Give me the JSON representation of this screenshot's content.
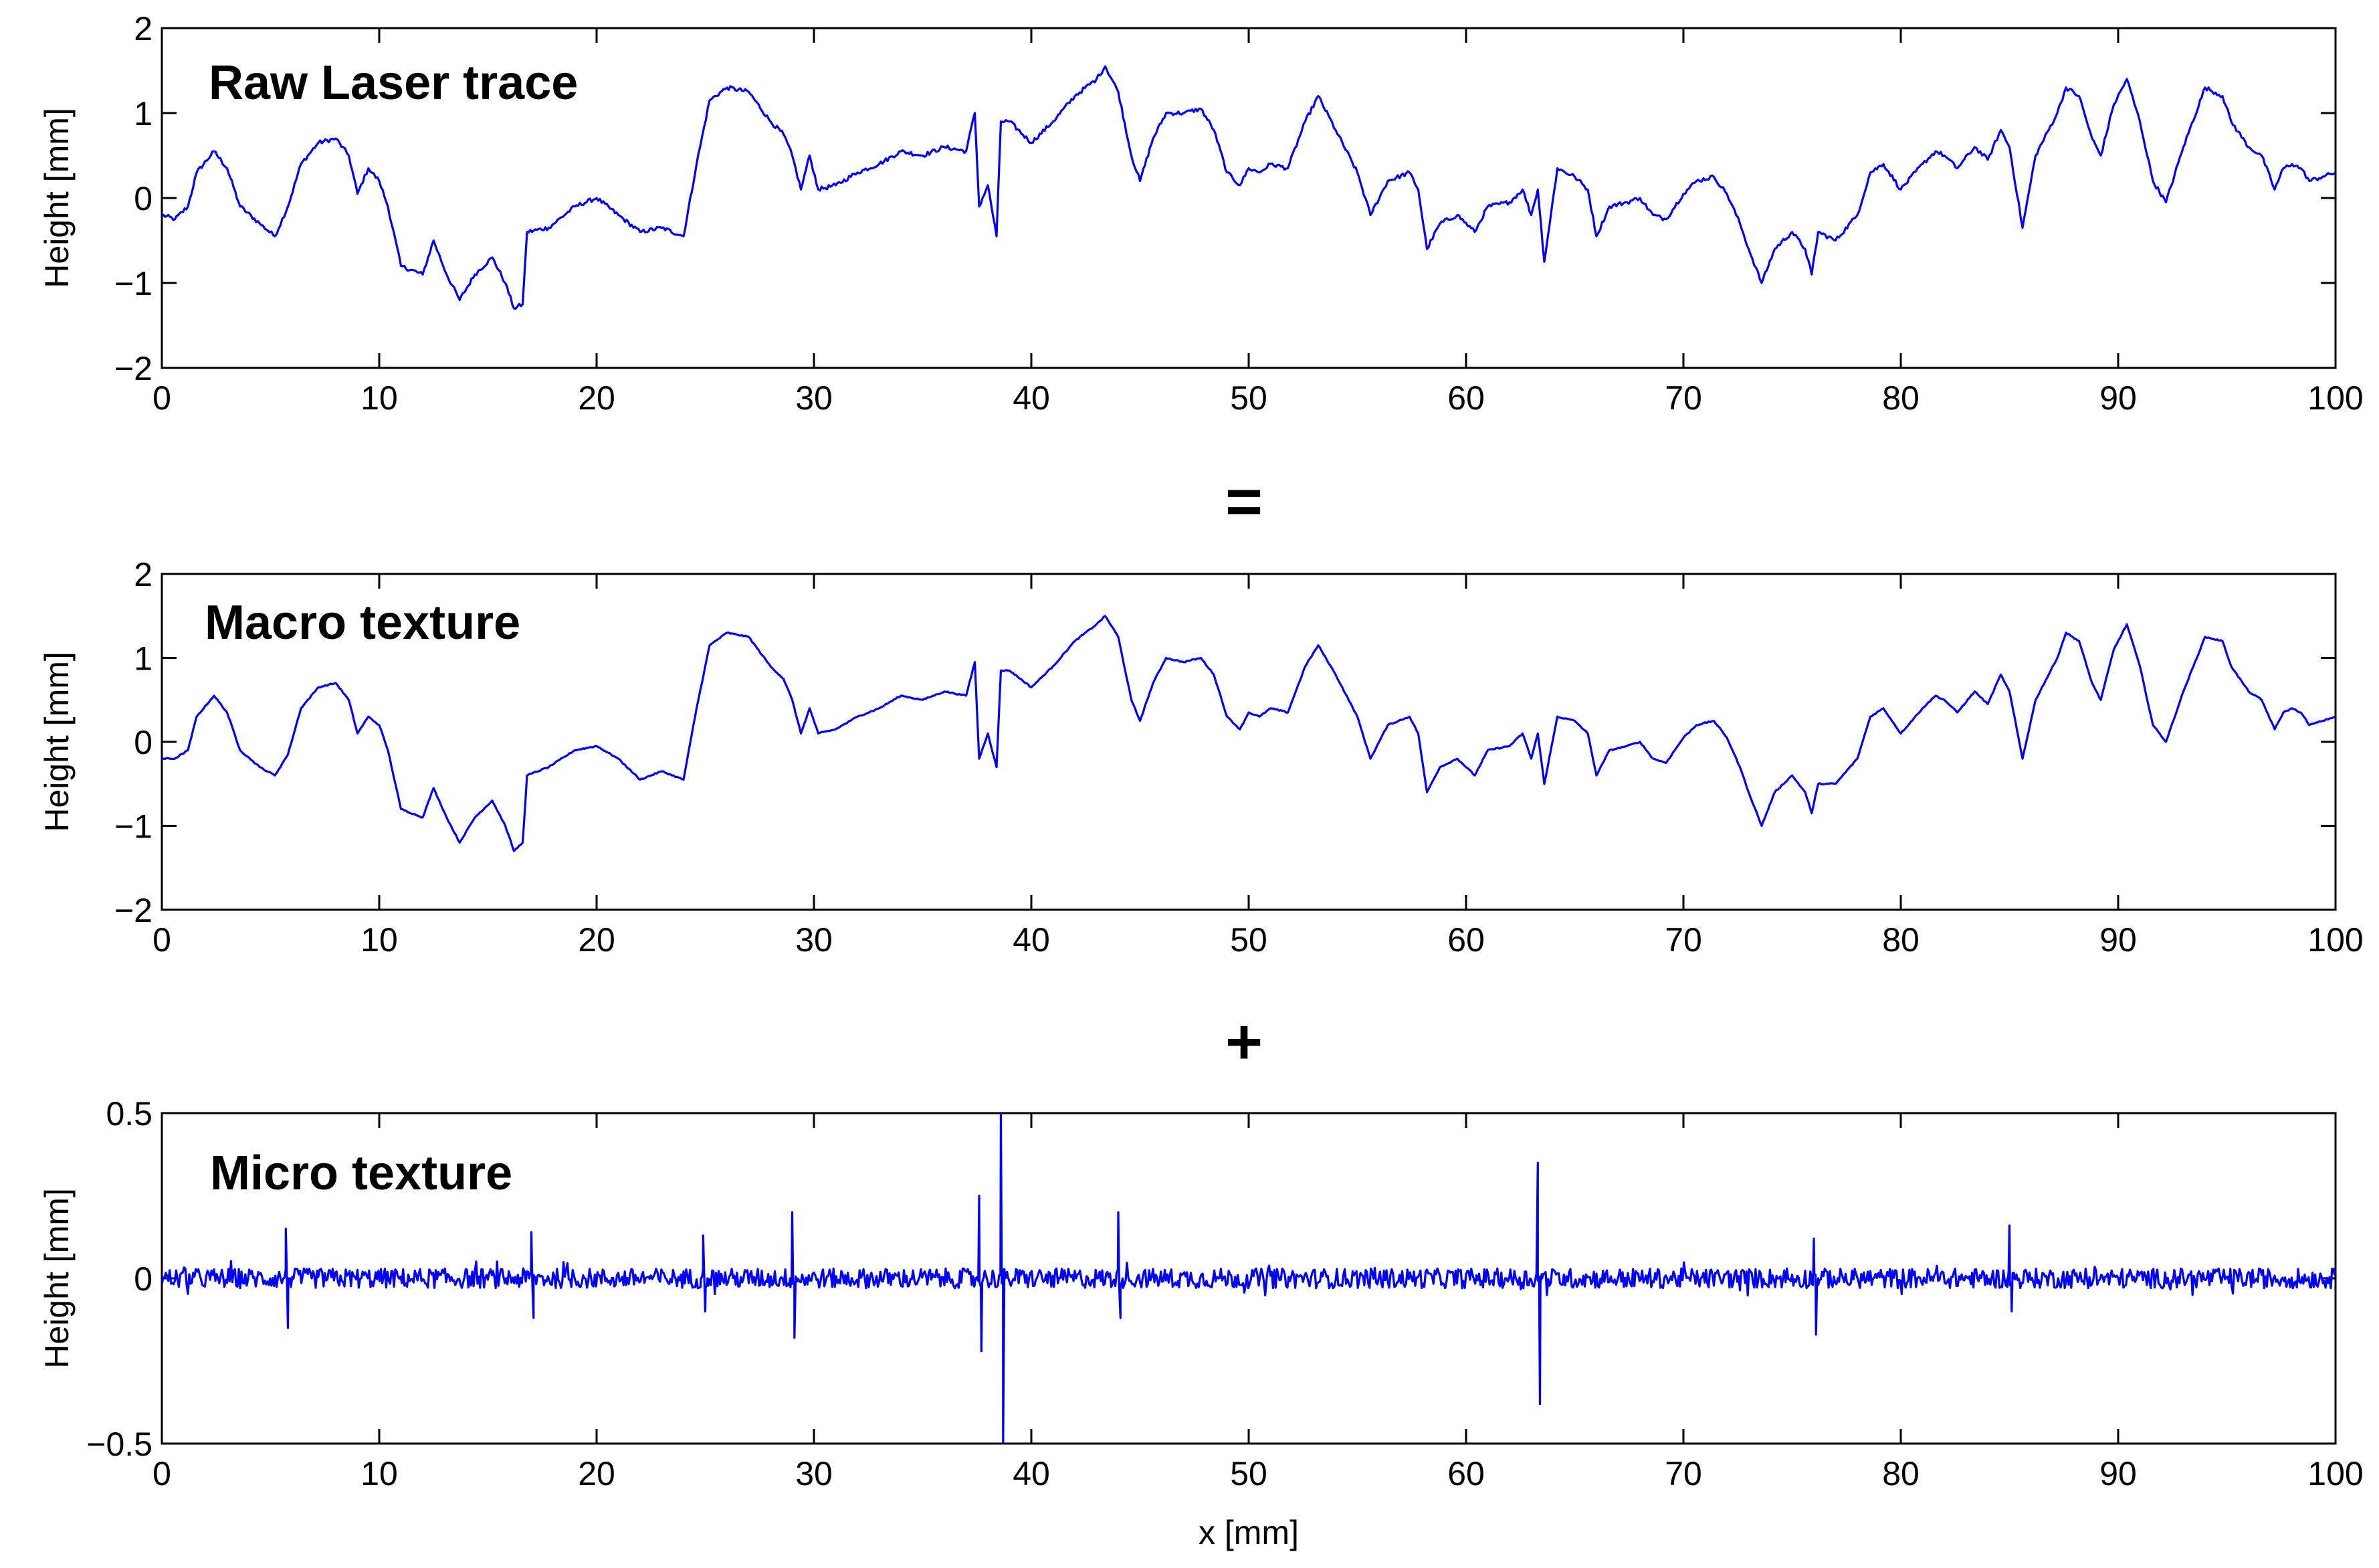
{
  "figure": {
    "operators": [
      "=",
      "+"
    ],
    "line_color": "#0000ff"
  },
  "chart_data": [
    {
      "type": "line",
      "title": "Raw Laser trace",
      "xlabel": "",
      "ylabel": "Height [mm]",
      "xlim": [
        0,
        100
      ],
      "ylim": [
        -2,
        2
      ],
      "xticks": [
        0,
        10,
        20,
        30,
        40,
        50,
        60,
        70,
        80,
        90,
        100
      ],
      "yticks": [
        -2,
        -1,
        0,
        1,
        2
      ],
      "ytick_labels": [
        "−2",
        "−1",
        "0",
        "1",
        "2"
      ],
      "grid": false,
      "series": [
        {
          "x": [
            0,
            0.6,
            1.2,
            1.6,
            2.4,
            3,
            3.6,
            4.5,
            5.2,
            5.8,
            6.4,
            7.2,
            8,
            8.6,
            9,
            9.5,
            10,
            10.4,
            11,
            12,
            12.5,
            13.1,
            13.7,
            14.4,
            15.2,
            15.8,
            16.2,
            16.6,
            16.8,
            17.8,
            19,
            20,
            21,
            22,
            23,
            24,
            24.6,
            25.2,
            26,
            27,
            28,
            28.6,
            29,
            29.4,
            29.8,
            30.2,
            31,
            32,
            33,
            34,
            35,
            36,
            37,
            37.4,
            37.6,
            38,
            38.4,
            38.6,
            39,
            40,
            41,
            42,
            43,
            43.4,
            44,
            44.6,
            45,
            45.6,
            46.2,
            47,
            47.8,
            48.4,
            49,
            49.6,
            50,
            50.5,
            51,
            51.8,
            52.6,
            53.2,
            54,
            55,
            55.6,
            56.4,
            57.4,
            57.8,
            58.2,
            58.8,
            59.6,
            60.4,
            61,
            62,
            62.6,
            63,
            63.3,
            63.6,
            64.2,
            65,
            65.6,
            66,
            66.6,
            67.4,
            68,
            68.6,
            69.2,
            70,
            70.6,
            71.4,
            72,
            72.6,
            73,
            73.6,
            74.2,
            75,
            75.6,
            75.9,
            76.2,
            77,
            78,
            78.6,
            79.2,
            80,
            81,
            81.6,
            82,
            82.6,
            83.4,
            84,
            84.6,
            85,
            85.6,
            86.2,
            87.2,
            87.6,
            88.2,
            88.8,
            89.2,
            89.8,
            90.4,
            91,
            91.6,
            92.2,
            93,
            94,
            94.8,
            95.2,
            96,
            96.6,
            97.2,
            97.6,
            98,
            98.4,
            98.8,
            99.4,
            100
          ],
          "y": [
            -0.2,
            -0.25,
            -0.1,
            0.3,
            0.55,
            0.35,
            -0.1,
            -0.3,
            -0.45,
            -0.1,
            0.4,
            0.65,
            0.7,
            0.5,
            0.05,
            0.35,
            0.2,
            -0.1,
            -0.8,
            -0.9,
            -0.5,
            -0.9,
            -1.2,
            -0.9,
            -0.7,
            -1.0,
            -1.3,
            -1.25,
            -0.4,
            -0.35,
            -0.1,
            0.0,
            -0.2,
            -0.4,
            -0.35,
            -0.45,
            0.4,
            1.15,
            1.3,
            1.25,
            0.9,
            0.75,
            0.5,
            0.1,
            0.5,
            0.1,
            0.15,
            0.3,
            0.4,
            0.55,
            0.5,
            0.6,
            0.55,
            1.0,
            -0.1,
            0.15,
            -0.45,
            0.9,
            0.9,
            0.65,
            0.9,
            1.2,
            1.4,
            1.55,
            1.25,
            0.5,
            0.2,
            0.7,
            1.0,
            1.0,
            1.05,
            0.8,
            0.3,
            0.15,
            0.35,
            0.3,
            0.4,
            0.35,
            0.9,
            1.2,
            0.8,
            0.3,
            -0.2,
            0.2,
            0.3,
            0.1,
            -0.6,
            -0.3,
            -0.2,
            -0.4,
            -0.1,
            -0.05,
            0.1,
            -0.2,
            0.1,
            -0.75,
            0.35,
            0.25,
            0.1,
            -0.45,
            -0.1,
            -0.05,
            0.0,
            -0.2,
            -0.25,
            0.05,
            0.2,
            0.25,
            0.05,
            -0.3,
            -0.6,
            -1.0,
            -0.6,
            -0.4,
            -0.6,
            -0.9,
            -0.4,
            -0.5,
            -0.2,
            0.3,
            0.4,
            0.1,
            0.4,
            0.55,
            0.5,
            0.35,
            0.6,
            0.45,
            0.8,
            0.6,
            -0.35,
            0.5,
            1.0,
            1.3,
            1.2,
            0.7,
            0.5,
            1.1,
            1.4,
            0.9,
            0.2,
            -0.05,
            0.6,
            1.3,
            1.2,
            0.9,
            0.6,
            0.5,
            0.1,
            0.35,
            0.4,
            0.35,
            0.2,
            0.25,
            0.3
          ]
        }
      ]
    },
    {
      "type": "line",
      "title": "Macro texture",
      "xlabel": "",
      "ylabel": "Height [mm]",
      "xlim": [
        0,
        100
      ],
      "ylim": [
        -2,
        2
      ],
      "xticks": [
        0,
        10,
        20,
        30,
        40,
        50,
        60,
        70,
        80,
        90,
        100
      ],
      "yticks": [
        -2,
        -1,
        0,
        1,
        2
      ],
      "ytick_labels": [
        "−2",
        "−1",
        "0",
        "1",
        "2"
      ],
      "grid": false,
      "series": [
        {
          "x": [
            0,
            0.6,
            1.2,
            1.6,
            2.4,
            3,
            3.6,
            4.5,
            5.2,
            5.8,
            6.4,
            7.2,
            8,
            8.6,
            9,
            9.5,
            10,
            10.4,
            11,
            12,
            12.5,
            13.1,
            13.7,
            14.4,
            15.2,
            15.8,
            16.2,
            16.6,
            16.8,
            17.8,
            19,
            20,
            21,
            22,
            23,
            24,
            24.6,
            25.2,
            26,
            27,
            28,
            28.6,
            29,
            29.4,
            29.8,
            30.2,
            31,
            32,
            33,
            34,
            35,
            36,
            37,
            37.4,
            37.6,
            38,
            38.4,
            38.6,
            39,
            40,
            41,
            42,
            43,
            43.4,
            44,
            44.6,
            45,
            45.6,
            46.2,
            47,
            47.8,
            48.4,
            49,
            49.6,
            50,
            50.5,
            51,
            51.8,
            52.6,
            53.2,
            54,
            55,
            55.6,
            56.4,
            57.4,
            57.8,
            58.2,
            58.8,
            59.6,
            60.4,
            61,
            62,
            62.6,
            63,
            63.3,
            63.6,
            64.2,
            65,
            65.6,
            66,
            66.6,
            67.4,
            68,
            68.6,
            69.2,
            70,
            70.6,
            71.4,
            72,
            72.6,
            73,
            73.6,
            74.2,
            75,
            75.6,
            75.9,
            76.2,
            77,
            78,
            78.6,
            79.2,
            80,
            81,
            81.6,
            82,
            82.6,
            83.4,
            84,
            84.6,
            85,
            85.6,
            86.2,
            87.2,
            87.6,
            88.2,
            88.8,
            89.2,
            89.8,
            90.4,
            91,
            91.6,
            92.2,
            93,
            94,
            94.8,
            95.2,
            96,
            96.6,
            97.2,
            97.6,
            98,
            98.4,
            98.8,
            99.4,
            100
          ],
          "y": [
            -0.2,
            -0.2,
            -0.1,
            0.3,
            0.55,
            0.35,
            -0.1,
            -0.3,
            -0.4,
            -0.15,
            0.4,
            0.65,
            0.7,
            0.5,
            0.1,
            0.3,
            0.2,
            -0.1,
            -0.8,
            -0.9,
            -0.55,
            -0.9,
            -1.2,
            -0.9,
            -0.7,
            -1.0,
            -1.3,
            -1.2,
            -0.4,
            -0.3,
            -0.1,
            -0.05,
            -0.2,
            -0.45,
            -0.35,
            -0.45,
            0.4,
            1.15,
            1.3,
            1.25,
            0.9,
            0.75,
            0.5,
            0.1,
            0.4,
            0.1,
            0.15,
            0.3,
            0.4,
            0.55,
            0.5,
            0.6,
            0.55,
            0.95,
            -0.2,
            0.1,
            -0.3,
            0.85,
            0.85,
            0.65,
            0.9,
            1.2,
            1.4,
            1.5,
            1.25,
            0.5,
            0.25,
            0.7,
            1.0,
            0.95,
            1.0,
            0.8,
            0.3,
            0.15,
            0.35,
            0.3,
            0.4,
            0.35,
            0.9,
            1.15,
            0.8,
            0.3,
            -0.2,
            0.2,
            0.3,
            0.1,
            -0.6,
            -0.3,
            -0.2,
            -0.4,
            -0.1,
            -0.05,
            0.1,
            -0.2,
            0.1,
            -0.5,
            0.3,
            0.25,
            0.1,
            -0.4,
            -0.1,
            -0.05,
            0.0,
            -0.2,
            -0.25,
            0.05,
            0.2,
            0.25,
            0.05,
            -0.3,
            -0.6,
            -1.0,
            -0.6,
            -0.4,
            -0.6,
            -0.85,
            -0.5,
            -0.5,
            -0.2,
            0.3,
            0.4,
            0.1,
            0.4,
            0.55,
            0.5,
            0.35,
            0.6,
            0.45,
            0.8,
            0.6,
            -0.2,
            0.5,
            1.0,
            1.3,
            1.2,
            0.7,
            0.5,
            1.1,
            1.4,
            0.9,
            0.2,
            0.0,
            0.6,
            1.25,
            1.2,
            0.9,
            0.6,
            0.5,
            0.15,
            0.35,
            0.4,
            0.35,
            0.2,
            0.25,
            0.3
          ]
        }
      ]
    },
    {
      "type": "line",
      "title": "Micro texture",
      "xlabel": "x [mm]",
      "ylabel": "Height [mm]",
      "xlim": [
        0,
        100
      ],
      "ylim": [
        -0.5,
        0.5
      ],
      "xticks": [
        0,
        10,
        20,
        30,
        40,
        50,
        60,
        70,
        80,
        90,
        100
      ],
      "yticks": [
        -0.5,
        0,
        0.5
      ],
      "ytick_labels": [
        "−0.5",
        "0",
        "0.5"
      ],
      "grid": false,
      "noise_amplitude": 0.03,
      "series": [
        {
          "x": [
            5.6,
            5.7,
            5.8,
            5.9,
            16.9,
            17.0,
            17.1,
            17.2,
            24.8,
            24.9,
            25.0,
            25.1,
            28.9,
            29.0,
            29.1,
            29.2,
            37.5,
            37.6,
            37.7,
            37.8,
            38.5,
            38.6,
            38.7,
            38.8,
            43.9,
            44.0,
            44.1,
            44.2,
            63.2,
            63.3,
            63.4,
            63.5,
            75.9,
            76.0,
            76.1,
            76.2,
            84.9,
            85.0,
            85.1,
            85.2
          ],
          "y": [
            0.0,
            0.15,
            -0.15,
            0.0,
            0.0,
            0.14,
            -0.12,
            0.0,
            0.0,
            0.13,
            -0.1,
            0.0,
            0.0,
            0.2,
            -0.18,
            0.0,
            0.0,
            0.25,
            -0.22,
            0.0,
            0.0,
            0.5,
            -0.5,
            0.0,
            0.0,
            0.2,
            -0.12,
            0.0,
            0.0,
            0.35,
            -0.38,
            0.0,
            0.0,
            0.12,
            -0.17,
            0.0,
            0.0,
            0.16,
            -0.1,
            0.0
          ]
        }
      ]
    }
  ]
}
